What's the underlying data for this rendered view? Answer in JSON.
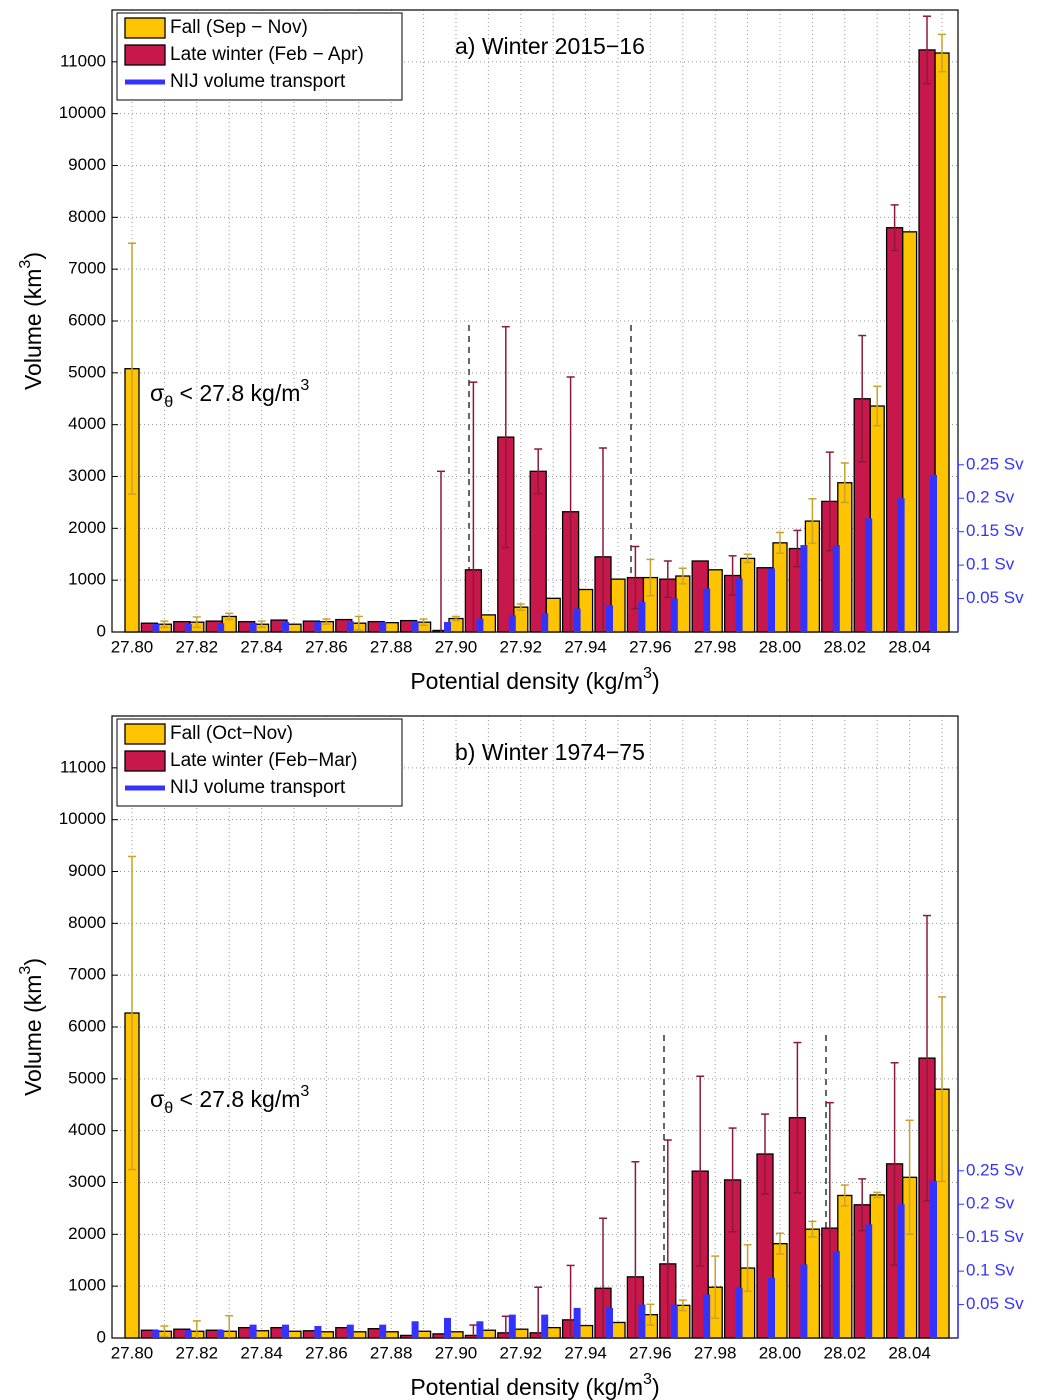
{
  "chart_data": [
    {
      "type": "bar",
      "title": "a) Winter 2015−16",
      "x_label": [
        "Potential density (kg/m",
        "3",
        ")"
      ],
      "y_label": [
        "Volume (km",
        "3",
        ")"
      ],
      "annotation": [
        "σ",
        "θ",
        " < 27.8 kg/m",
        "3"
      ],
      "categories": [
        "27.80",
        null,
        "27.82",
        null,
        "27.84",
        null,
        "27.86",
        null,
        "27.88",
        null,
        "27.90",
        null,
        "27.92",
        null,
        "27.94",
        null,
        "27.96",
        null,
        "27.98",
        null,
        "28.00",
        null,
        "28.02",
        null,
        "28.04",
        null
      ],
      "series": [
        {
          "name": "Fall (Sep − Nov)",
          "color": "#ffc400",
          "error_color": "#c9a22a",
          "values": [
            5080,
            150,
            190,
            300,
            150,
            150,
            200,
            170,
            180,
            190,
            260,
            330,
            480,
            650,
            820,
            1020,
            1050,
            1080,
            1200,
            1420,
            1720,
            2140,
            2880,
            4360,
            7720,
            11170
          ],
          "errors": [
            2420,
            60,
            100,
            60,
            60,
            null,
            50,
            130,
            null,
            60,
            40,
            null,
            60,
            null,
            null,
            null,
            350,
            150,
            null,
            80,
            200,
            430,
            380,
            380,
            null,
            360
          ]
        },
        {
          "name": "Late winter (Feb − Apr)",
          "color": "#c8174a",
          "error_color": "#8b1a3a",
          "values": [
            null,
            170,
            200,
            210,
            200,
            230,
            210,
            240,
            200,
            220,
            30,
            1200,
            3760,
            3100,
            2320,
            1450,
            1050,
            1020,
            1370,
            1090,
            1240,
            1610,
            2520,
            4500,
            7800,
            11230
          ],
          "errors": [
            null,
            null,
            null,
            null,
            null,
            null,
            null,
            null,
            null,
            null,
            3070,
            3620,
            2130,
            430,
            2600,
            2100,
            600,
            350,
            null,
            380,
            null,
            350,
            950,
            1220,
            440,
            650
          ]
        },
        {
          "name": "NIJ volume transport",
          "color": "#3333ff",
          "axis": "y2",
          "values": [
            null,
            0.012,
            0.012,
            0.013,
            0.014,
            0.015,
            0.015,
            0.016,
            0.015,
            0.016,
            0.015,
            0.02,
            0.025,
            0.028,
            0.035,
            0.04,
            0.045,
            0.05,
            0.065,
            0.08,
            0.095,
            0.13,
            0.13,
            0.17,
            0.2,
            0.235
          ]
        }
      ],
      "ylim": [
        0,
        12000
      ],
      "yticks": [
        0,
        1000,
        2000,
        3000,
        4000,
        5000,
        6000,
        7000,
        8000,
        9000,
        10000,
        11000
      ],
      "y2lim": [
        0,
        0.93
      ],
      "y2ticks": [
        {
          "value": 0.05,
          "label": "0.05 Sv"
        },
        {
          "value": 0.1,
          "label": "0.1 Sv"
        },
        {
          "value": 0.15,
          "label": "0.15 Sv"
        },
        {
          "value": 0.2,
          "label": "0.2 Sv"
        },
        {
          "value": 0.25,
          "label": "0.25 Sv"
        }
      ],
      "grid": true,
      "legend": "upper left"
    },
    {
      "type": "bar",
      "title": "b) Winter 1974−75",
      "x_label": [
        "Potential density (kg/m",
        "3",
        ")"
      ],
      "y_label": [
        "Volume (km",
        "3",
        ")"
      ],
      "annotation": [
        "σ",
        "θ",
        " < 27.8 kg/m",
        "3"
      ],
      "categories": [
        "27.80",
        null,
        "27.82",
        null,
        "27.84",
        null,
        "27.86",
        null,
        "27.88",
        null,
        "27.90",
        null,
        "27.92",
        null,
        "27.94",
        null,
        "27.96",
        null,
        "27.98",
        null,
        "28.00",
        null,
        "28.02",
        null,
        "28.04",
        null
      ],
      "series": [
        {
          "name": "Fall (Oct−Nov)",
          "color": "#ffc400",
          "error_color": "#c9a22a",
          "values": [
            6270,
            130,
            130,
            130,
            140,
            130,
            120,
            120,
            120,
            130,
            120,
            150,
            170,
            200,
            240,
            300,
            450,
            630,
            980,
            1350,
            1820,
            2100,
            2750,
            2760,
            3100,
            4800
          ],
          "errors": [
            3020,
            100,
            200,
            300,
            null,
            null,
            null,
            null,
            null,
            null,
            null,
            null,
            null,
            null,
            null,
            null,
            200,
            100,
            600,
            450,
            200,
            150,
            200,
            50,
            1100,
            1780
          ]
        },
        {
          "name": "Late winter (Feb−Mar)",
          "color": "#c8174a",
          "error_color": "#8b1a3a",
          "values": [
            null,
            150,
            170,
            150,
            200,
            200,
            140,
            200,
            180,
            50,
            80,
            50,
            100,
            100,
            350,
            960,
            1180,
            1430,
            3220,
            3050,
            3550,
            4250,
            2120,
            2570,
            3360,
            5400
          ],
          "errors": [
            null,
            null,
            null,
            null,
            null,
            null,
            null,
            null,
            null,
            null,
            null,
            200,
            320,
            880,
            1050,
            1350,
            2220,
            2390,
            1830,
            1000,
            770,
            1450,
            2420,
            500,
            1950,
            2750
          ]
        },
        {
          "name": "NIJ volume transport",
          "color": "#3333ff",
          "axis": "y2",
          "values": [
            null,
            0.012,
            0.012,
            0.012,
            0.02,
            0.02,
            0.018,
            0.02,
            0.02,
            0.025,
            0.03,
            0.025,
            0.035,
            0.035,
            0.045,
            0.045,
            0.05,
            0.05,
            0.065,
            0.075,
            0.09,
            0.11,
            0.13,
            0.17,
            0.2,
            0.235
          ]
        }
      ],
      "ylim": [
        0,
        12000
      ],
      "yticks": [
        0,
        1000,
        2000,
        3000,
        4000,
        5000,
        6000,
        7000,
        8000,
        9000,
        10000,
        11000
      ],
      "y2lim": [
        0,
        0.93
      ],
      "y2ticks": [
        {
          "value": 0.05,
          "label": "0.05 Sv"
        },
        {
          "value": 0.1,
          "label": "0.1 Sv"
        },
        {
          "value": 0.15,
          "label": "0.15 Sv"
        },
        {
          "value": 0.2,
          "label": "0.2 Sv"
        },
        {
          "value": 0.25,
          "label": "0.25 Sv"
        }
      ],
      "grid": true,
      "legend": "upper left"
    }
  ]
}
